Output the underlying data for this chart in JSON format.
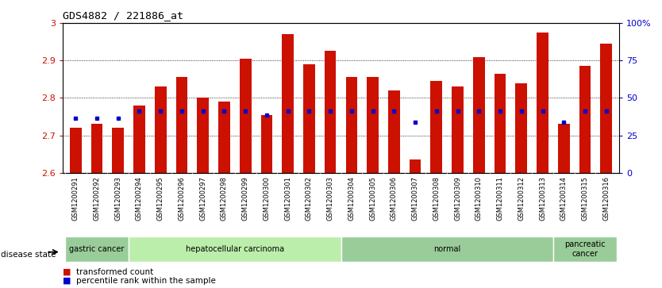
{
  "title": "GDS4882 / 221886_at",
  "samples": [
    "GSM1200291",
    "GSM1200292",
    "GSM1200293",
    "GSM1200294",
    "GSM1200295",
    "GSM1200296",
    "GSM1200297",
    "GSM1200298",
    "GSM1200299",
    "GSM1200300",
    "GSM1200301",
    "GSM1200302",
    "GSM1200303",
    "GSM1200304",
    "GSM1200305",
    "GSM1200306",
    "GSM1200307",
    "GSM1200308",
    "GSM1200309",
    "GSM1200310",
    "GSM1200311",
    "GSM1200312",
    "GSM1200313",
    "GSM1200314",
    "GSM1200315",
    "GSM1200316"
  ],
  "bar_values": [
    2.72,
    2.73,
    2.72,
    2.78,
    2.83,
    2.855,
    2.8,
    2.79,
    2.905,
    2.755,
    2.97,
    2.89,
    2.925,
    2.855,
    2.855,
    2.82,
    2.635,
    2.845,
    2.83,
    2.91,
    2.865,
    2.84,
    2.975,
    2.73,
    2.885,
    2.945
  ],
  "percentile_values": [
    2.745,
    2.745,
    2.745,
    2.765,
    2.765,
    2.765,
    2.765,
    2.765,
    2.765,
    2.755,
    2.765,
    2.765,
    2.765,
    2.765,
    2.765,
    2.765,
    2.735,
    2.765,
    2.765,
    2.765,
    2.765,
    2.765,
    2.765,
    2.735,
    2.765,
    2.765
  ],
  "ymin": 2.6,
  "ymax": 3.0,
  "yticks": [
    2.6,
    2.7,
    2.8,
    2.9,
    3.0
  ],
  "right_yticks": [
    0,
    25,
    50,
    75,
    100
  ],
  "right_ytick_labels": [
    "0",
    "25",
    "50",
    "75",
    "100%"
  ],
  "bar_color": "#cc1100",
  "percentile_color": "#0000cc",
  "disease_groups": [
    {
      "label": "gastric cancer",
      "start": 0,
      "end": 3,
      "color": "#99cc99"
    },
    {
      "label": "hepatocellular carcinoma",
      "start": 3,
      "end": 13,
      "color": "#bbeeaa"
    },
    {
      "label": "normal",
      "start": 13,
      "end": 23,
      "color": "#99cc99"
    },
    {
      "label": "pancreatic\ncancer",
      "start": 23,
      "end": 26,
      "color": "#99cc99"
    }
  ],
  "disease_label": "disease state",
  "legend_bar_label": "transformed count",
  "legend_dot_label": "percentile rank within the sample",
  "bg_color": "#ffffff",
  "tick_label_color_left": "#cc1100",
  "tick_label_color_right": "#0000cc",
  "xtick_bg_color": "#cccccc",
  "chart_bg_color": "#ffffff"
}
